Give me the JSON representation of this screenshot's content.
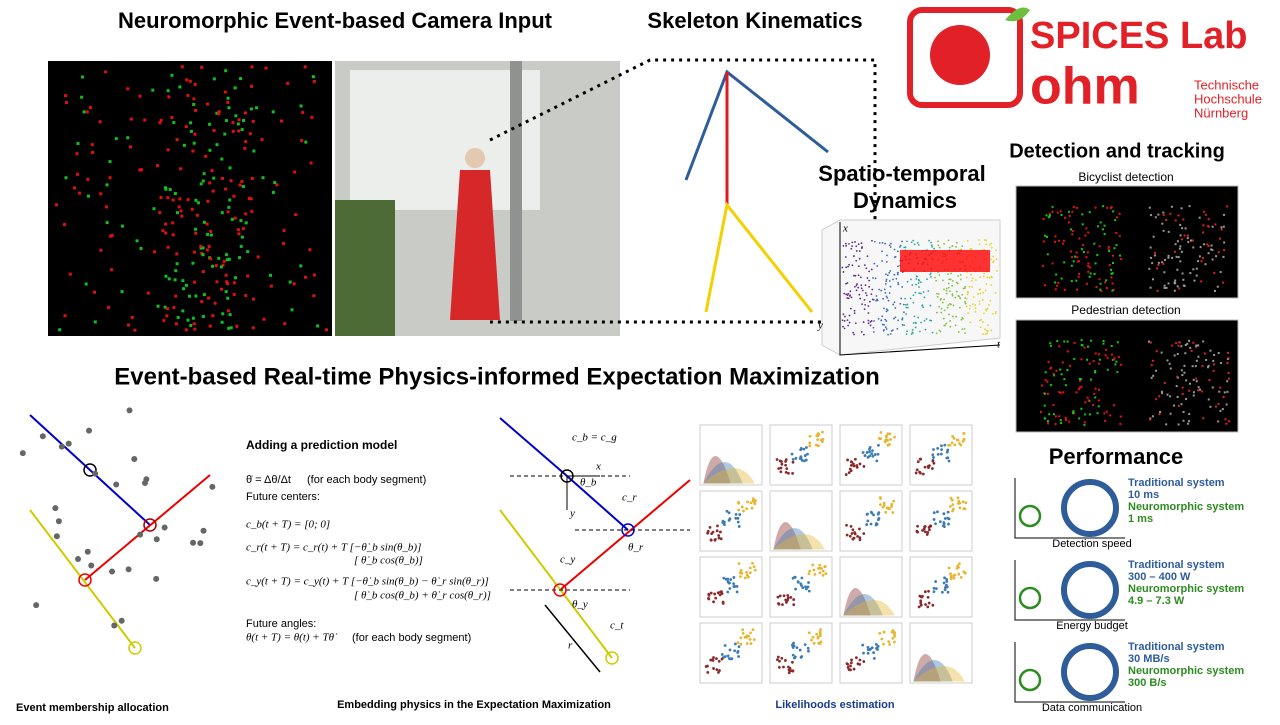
{
  "headings": {
    "camera": "Neuromorphic Event-based Camera Input",
    "skeleton": "Skeleton Kinematics",
    "spatiotemporal": [
      "Spatio-temporal",
      "Dynamics"
    ],
    "detection": "Detection and tracking",
    "em": "Event-based Real-time Physics-informed Expectation Maximization",
    "performance": "Performance"
  },
  "logo": {
    "lab": "SPICES Lab",
    "ohm": "ohm",
    "school": [
      "Technische",
      "Hochschule",
      "Nürnberg"
    ]
  },
  "plot_axes": {
    "x": "x",
    "y": "y",
    "t": "t"
  },
  "detection": {
    "bicyclist": "Bicyclist detection",
    "pedestrian": "Pedestrian detection"
  },
  "prediction": {
    "title": "Adding a prediction model",
    "bullet1": "θ̇ = Δθ/Δt",
    "bullet1_note": "(for each body segment)",
    "bullet2": "Future centers:",
    "eq_b": "c_b(t + T) = [0; 0]",
    "eq_r": [
      "c_r(t + T) = c_r(t) + T [−θ̇_b sin(θ_b)]",
      "[ θ̇_b cos(θ_b)]"
    ],
    "eq_y": [
      "c_y(t + T) = c_y(t) + T [−θ̇_b sin(θ_b) − θ̇_r sin(θ_r)]",
      "[ θ̇_b cos(θ_b) + θ̇_r cos(θ_r)]"
    ],
    "bullet3": "Future angles:",
    "eq_theta": "θ(t + T) = θ(t) + Tθ̇",
    "eq_theta_note": "(for each body segment)"
  },
  "geometry": {
    "cb": "c_b = c_g",
    "x": "x",
    "y": "y",
    "thb": "θ_b",
    "cr": "c_r",
    "thr": "θ_r",
    "cy": "c_y",
    "thy": "θ_y",
    "r": "r",
    "ct": "c_t"
  },
  "captions": {
    "membership": "Event membership allocation",
    "embedding": "Embedding physics in the Expectation Maximization",
    "likelihoods": "Likelihoods  estimation"
  },
  "performance": [
    {
      "traditional": "Traditional system",
      "trad_value": "10 ms",
      "neuromorphic": "Neuromorphic system",
      "neuro_value": "1 ms",
      "caption": "Detection speed"
    },
    {
      "traditional": "Traditional system",
      "trad_value": "300 – 400 W",
      "neuromorphic": "Neuromorphic system",
      "neuro_value": "4.9 – 7.3 W",
      "caption": "Energy budget"
    },
    {
      "traditional": "Traditional system",
      "trad_value": "30 MB/s",
      "neuromorphic": "Neuromorphic system",
      "neuro_value": "300 B/s",
      "caption": "Data communication"
    }
  ]
}
